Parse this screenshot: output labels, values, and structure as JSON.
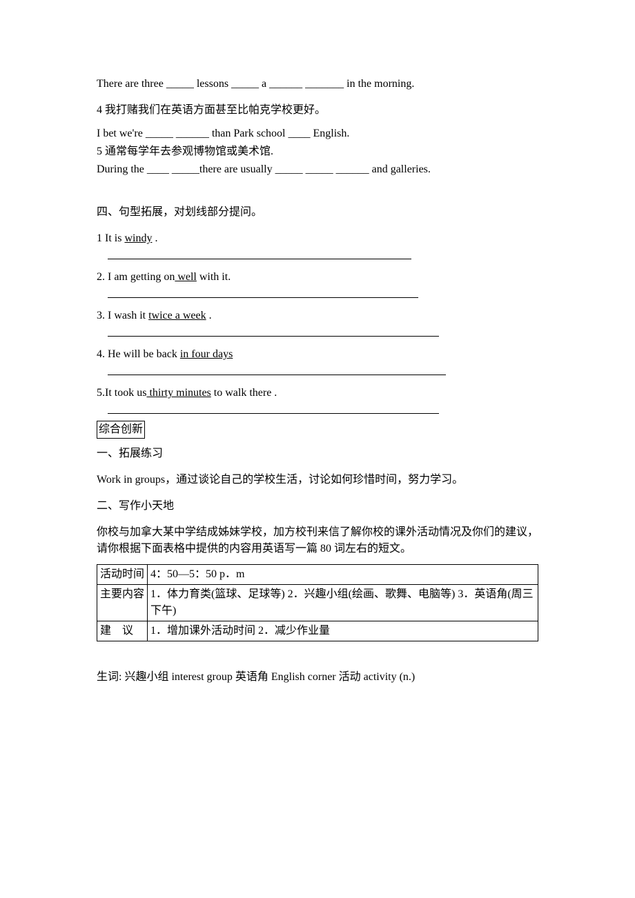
{
  "q3_line1": "There are three _____ lessons _____ a ______ _______ in the morning.",
  "q4_prompt": "4 我打赌我们在英语方面甚至比帕克学校更好。",
  "q4_answer": "I bet we're _____ ______ than Park school ____ English.",
  "q5_prompt": "5 通常每学年去参观博物馆或美术馆.",
  "q5_answer": "During the ____ _____there are usually _____ _____ ______ and galleries.",
  "section4_title": "四、句型拓展，对划线部分提问。",
  "s4_q1_pre": "1 It is ",
  "s4_q1_u": "windy",
  "s4_q1_post": " .",
  "s4_q2_pre": "2. I am getting on",
  "s4_q2_u": " well",
  "s4_q2_post": " with it.",
  "s4_q3_pre": "3. I wash it ",
  "s4_q3_u": "twice a week",
  "s4_q3_post": " .",
  "s4_q4_pre": "4. He will be back ",
  "s4_q4_u": "in four days ",
  "s4_q5_pre": "5.It took us",
  "s4_q5_u": " thirty minutes",
  "s4_q5_post": " to walk there .",
  "box_title": "综合创新",
  "ext1_title": "一、拓展练习",
  "ext1_body": "Work in groups，通过谈论自己的学校生活，讨论如何珍惜时间，努力学习。",
  "ext2_title": "二、写作小天地",
  "ext2_body": "你校与加拿大某中学结成姊妹学校，加方校刊来信了解你校的课外活动情况及你们的建议，请你根据下面表格中提供的内容用英语写一篇 80 词左右的短文。",
  "table": {
    "r1c1": "活动时间",
    "r1c2": "4：50—5：50 p．m",
    "r2c1": " 主要内容",
    "r2c2": "1．体力育类(篮球、足球等)  2．兴趣小组(绘画、歌舞、电脑等)  3．英语角(周三下午)",
    "r3c1": "建　议",
    "r3c2": "1．增加课外活动时间  2．减少作业量"
  },
  "vocab": "生词: 兴趣小组  interest group 英语角  English corner 活动  activity (n.)",
  "answer_line_widths": {
    "w1": "440px",
    "w2": "450px",
    "w3": "480px",
    "w4": "490px",
    "w5": "480px"
  }
}
